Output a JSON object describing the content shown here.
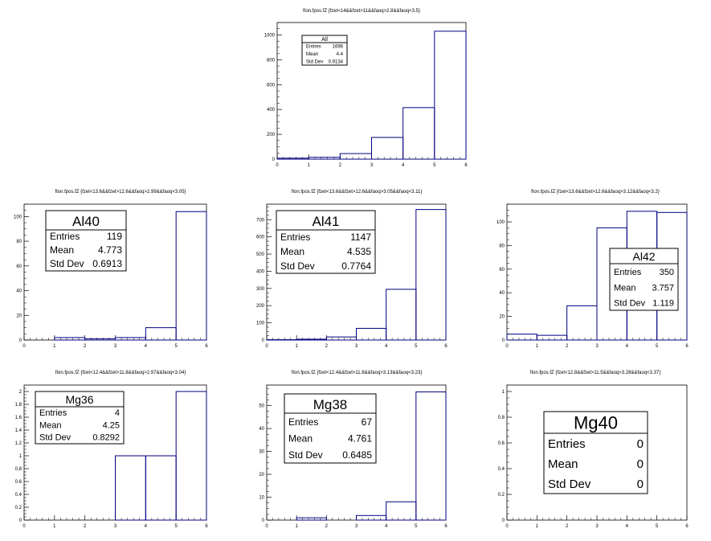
{
  "chart_data": [
    {
      "type": "bar",
      "title": "fIon.fpos.fZ {fzet<14&&fzet>11&&faoq>2.8&&faoq<3.5}",
      "bin_edges": [
        0,
        1,
        2,
        3,
        4,
        5,
        6
      ],
      "values": [
        8,
        15,
        45,
        175,
        415,
        1030
      ],
      "xlim": [
        0,
        6
      ],
      "ylim": [
        0,
        1100
      ],
      "xticks": [
        "0",
        "1",
        "2",
        "3",
        "4",
        "5",
        "6"
      ],
      "yticks": [
        "0",
        "200",
        "400",
        "600",
        "800",
        "1000"
      ],
      "stats": {
        "name": "All",
        "rows": [
          [
            "Entries",
            "1696"
          ],
          [
            "Mean",
            "4.4"
          ],
          [
            "Std Dev",
            "0.9134"
          ]
        ]
      }
    },
    {
      "type": "bar",
      "title": "fIon.fpos.fZ {fzet<13.6&&fzet>12.6&&faoq>2.99&&faoq<3.05}",
      "bin_edges": [
        0,
        1,
        2,
        3,
        4,
        5,
        6
      ],
      "values": [
        0,
        2,
        1,
        2,
        10,
        104
      ],
      "xlim": [
        0,
        6
      ],
      "ylim": [
        0,
        110
      ],
      "xticks": [
        "0",
        "1",
        "2",
        "3",
        "4",
        "5",
        "6"
      ],
      "yticks": [
        "0",
        "20",
        "40",
        "60",
        "80",
        "100"
      ],
      "stats": {
        "name": "Al40",
        "rows": [
          [
            "Entries",
            "119"
          ],
          [
            "Mean",
            "4.773"
          ],
          [
            "Std Dev",
            "0.6913"
          ]
        ]
      }
    },
    {
      "type": "bar",
      "title": "fIon.fpos.fZ {fzet<13.6&&fzet>12.6&&faoq>3.05&&faoq<3.11}",
      "bin_edges": [
        0,
        1,
        2,
        3,
        4,
        5,
        6
      ],
      "values": [
        2,
        5,
        18,
        68,
        295,
        759
      ],
      "xlim": [
        0,
        6
      ],
      "ylim": [
        0,
        790
      ],
      "xticks": [
        "0",
        "1",
        "2",
        "3",
        "4",
        "5",
        "6"
      ],
      "yticks": [
        "0",
        "100",
        "200",
        "300",
        "400",
        "500",
        "600",
        "700"
      ],
      "stats": {
        "name": "Al41",
        "rows": [
          [
            "Entries",
            "1147"
          ],
          [
            "Mean",
            "4.535"
          ],
          [
            "Std Dev",
            "0.7764"
          ]
        ]
      }
    },
    {
      "type": "bar",
      "title": "fIon.fpos.fZ {fzet<13.6&&fzet>12.6&&faoq>3.12&&faoq<3.2}",
      "bin_edges": [
        0,
        1,
        2,
        3,
        4,
        5,
        6
      ],
      "values": [
        5,
        4,
        29,
        95,
        109,
        108
      ],
      "xlim": [
        0,
        6
      ],
      "ylim": [
        0,
        115
      ],
      "xticks": [
        "0",
        "1",
        "2",
        "3",
        "4",
        "5",
        "6"
      ],
      "yticks": [
        "0",
        "20",
        "40",
        "60",
        "80",
        "100"
      ],
      "stats": {
        "name": "Al42",
        "rows": [
          [
            "Entries",
            "350"
          ],
          [
            "Mean",
            "3.757"
          ],
          [
            "Std Dev",
            "1.119"
          ]
        ]
      }
    },
    {
      "type": "bar",
      "title": "fIon.fpos.fZ {fzet<12.4&&fzet>11.8&&faoq>2.97&&faoq<3.04}",
      "bin_edges": [
        0,
        1,
        2,
        3,
        4,
        5,
        6
      ],
      "values": [
        0,
        0,
        0,
        1,
        1,
        2
      ],
      "xlim": [
        0,
        6
      ],
      "ylim": [
        0,
        2.1
      ],
      "xticks": [
        "0",
        "1",
        "2",
        "3",
        "4",
        "5",
        "6"
      ],
      "yticks": [
        "0",
        "0.2",
        "0.4",
        "0.6",
        "0.8",
        "1",
        "1.2",
        "1.4",
        "1.6",
        "1.8",
        "2"
      ],
      "stats": {
        "name": "Mg36",
        "rows": [
          [
            "Entries",
            "4"
          ],
          [
            "Mean",
            "4.25"
          ],
          [
            "Std Dev",
            "0.8292"
          ]
        ]
      }
    },
    {
      "type": "bar",
      "title": "fIon.fpos.fZ {fzet<12.4&&fzet>11.8&&faoq>3.13&&faoq<3.23}",
      "bin_edges": [
        0,
        1,
        2,
        3,
        4,
        5,
        6
      ],
      "values": [
        0,
        1,
        0,
        2,
        8,
        56
      ],
      "xlim": [
        0,
        6
      ],
      "ylim": [
        0,
        59
      ],
      "xticks": [
        "0",
        "1",
        "2",
        "3",
        "4",
        "5",
        "6"
      ],
      "yticks": [
        "0",
        "10",
        "20",
        "30",
        "40",
        "50"
      ],
      "stats": {
        "name": "Mg38",
        "rows": [
          [
            "Entries",
            "67"
          ],
          [
            "Mean",
            "4.761"
          ],
          [
            "Std Dev",
            "0.6485"
          ]
        ]
      }
    },
    {
      "type": "bar",
      "title": "fIon.fpos.fZ {fzet<12.8&&fzet>11.5&&faoq>3.28&&faoq<3.37}",
      "bin_edges": [
        0,
        1,
        2,
        3,
        4,
        5,
        6
      ],
      "values": [
        0,
        0,
        0,
        0,
        0,
        0
      ],
      "xlim": [
        0,
        6
      ],
      "ylim": [
        0,
        1.05
      ],
      "xticks": [
        "0",
        "1",
        "2",
        "3",
        "4",
        "5",
        "6"
      ],
      "yticks": [
        "0",
        "0.2",
        "0.4",
        "0.6",
        "0.8",
        "1"
      ],
      "stats": {
        "name": "Mg40",
        "rows": [
          [
            "Entries",
            "0"
          ],
          [
            "Mean",
            "0"
          ],
          [
            "Std Dev",
            "0"
          ]
        ]
      }
    }
  ],
  "colors": {
    "histogram": "#00007f",
    "axis": "#000000",
    "background": "#ffffff"
  }
}
